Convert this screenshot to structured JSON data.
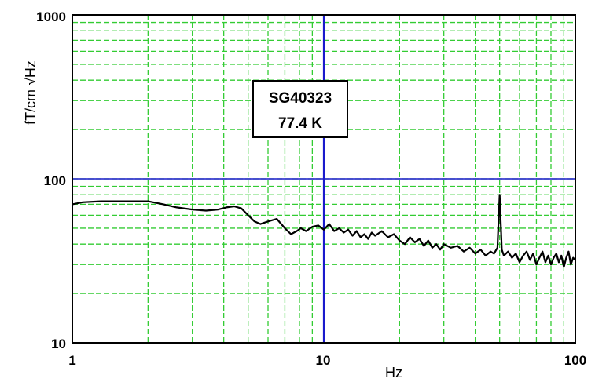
{
  "chart_data": {
    "type": "line",
    "xlabel": "Hz",
    "ylabel": "fT/cm √Hz",
    "x_scale": "log",
    "y_scale": "log",
    "xlim": [
      1,
      100
    ],
    "ylim": [
      10,
      1000
    ],
    "x_ticks": [
      "1",
      "10",
      "100"
    ],
    "y_ticks": [
      "10",
      "100",
      "1000"
    ],
    "grid": true,
    "colors": {
      "grid": "#33cc33",
      "reference_lines": "#1a1acc",
      "series": "#000000",
      "frame": "#000000"
    },
    "reference_lines": {
      "x": 10,
      "y": 100
    },
    "annotation": {
      "line1": "SG40323",
      "line2": "77.4 K"
    },
    "series": [
      {
        "x": [
          1,
          1.1,
          1.3,
          1.6,
          2.0,
          2.3,
          2.6,
          3.0,
          3.4,
          3.8,
          4.1,
          4.4,
          4.7,
          5.0,
          5.3,
          5.6,
          6.0,
          6.5,
          7.0,
          7.4,
          7.8,
          8.1,
          8.5,
          9.0,
          9.5,
          10.0,
          10.5,
          11.0,
          11.5,
          12.0,
          12.5,
          13.0,
          13.5,
          14.0,
          14.5,
          15.0,
          15.5,
          16.0,
          17.0,
          18.0,
          19.0,
          20.0,
          21.0,
          22.0,
          23.0,
          24.0,
          25.0,
          26.0,
          27.0,
          28.0,
          29.0,
          30.0,
          32.0,
          34.0,
          36.0,
          38.0,
          40.0,
          42.0,
          44.0,
          46.0,
          47.5,
          49.0,
          50.0,
          51.0,
          52.0,
          54.0,
          56.0,
          58.0,
          60.0,
          62.0,
          64.0,
          66.0,
          68.0,
          70.0,
          72.0,
          74.0,
          76.0,
          78.0,
          80.0,
          82.0,
          84.0,
          86.0,
          88.0,
          90.0,
          92.0,
          94.0,
          96.0,
          98.0,
          100.0
        ],
        "y": [
          70,
          72,
          73,
          73,
          73,
          70,
          67,
          65,
          64,
          65,
          67,
          68,
          66,
          60,
          55,
          53,
          55,
          57,
          50,
          46,
          48,
          50,
          48,
          51,
          52,
          49,
          53,
          48,
          50,
          47,
          49,
          45,
          48,
          44,
          46,
          43,
          47,
          45,
          48,
          44,
          46,
          42,
          40,
          44,
          41,
          43,
          39,
          42,
          38,
          40,
          37,
          40,
          38,
          39,
          36,
          38,
          35,
          37,
          34,
          36,
          35,
          38,
          80,
          37,
          34,
          36,
          33,
          35,
          31,
          34,
          36,
          32,
          35,
          30,
          33,
          36,
          31,
          34,
          30,
          33,
          35,
          31,
          34,
          29,
          33,
          36,
          30,
          33,
          32
        ]
      }
    ]
  }
}
